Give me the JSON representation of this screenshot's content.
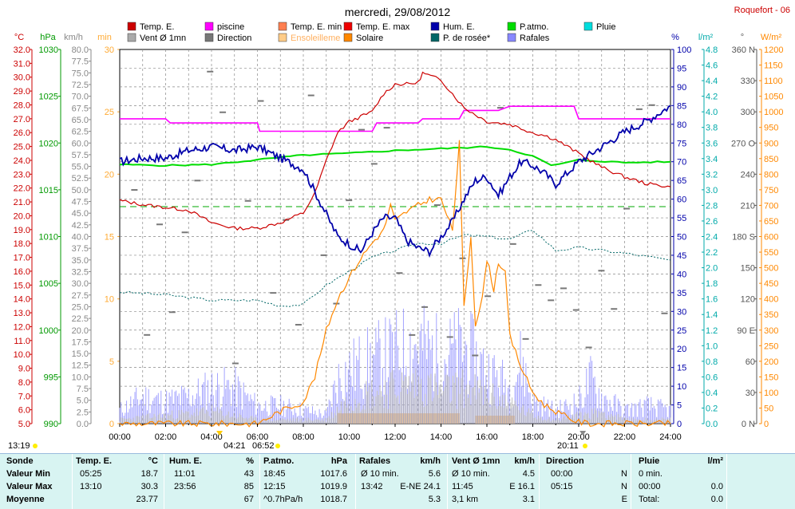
{
  "title": "mercredi, 29/08/2012",
  "station": "Roquefort - 06",
  "legend": [
    {
      "label": "Temp. E.",
      "color": "#cc0000"
    },
    {
      "label": "piscine",
      "color": "#ff00ff"
    },
    {
      "label": "Temp. E. min",
      "color": "#ff7f50"
    },
    {
      "label": "Temp. E. max",
      "color": "#ee0000"
    },
    {
      "label": "Hum. E.",
      "color": "#0000aa"
    },
    {
      "label": "P.atmo.",
      "color": "#00dd00"
    },
    {
      "label": "Pluie",
      "color": "#00dddd"
    },
    {
      "label": "Vent Ø 1mn",
      "color": "#aaaaaa"
    },
    {
      "label": "Direction",
      "color": "#777777"
    },
    {
      "label": "Ensoleilleme",
      "color": "#ffcc88"
    },
    {
      "label": "Solaire",
      "color": "#ff8800"
    },
    {
      "label": "P. de rosée*",
      "color": "#006666"
    },
    {
      "label": "Rafales",
      "color": "#8888ff"
    }
  ],
  "axes": {
    "left_units": [
      "°C",
      "hPa",
      "km/h",
      "min"
    ],
    "right_units": [
      "%",
      "l/m²",
      "°",
      "W/m²"
    ],
    "temp_ticks": [
      "5.0",
      "6.0",
      "7.0",
      "8.0",
      "9.0",
      "10.0",
      "11.0",
      "12.0",
      "13.0",
      "14.0",
      "15.0",
      "16.0",
      "17.0",
      "18.0",
      "19.0",
      "20.0",
      "21.0",
      "22.0",
      "23.0",
      "24.0",
      "25.0",
      "26.0",
      "27.0",
      "28.0",
      "29.0",
      "30.0",
      "31.0",
      "32.0"
    ],
    "hpa_ticks": [
      "990",
      "995",
      "1000",
      "1005",
      "1010",
      "1015",
      "1020",
      "1025",
      "1030"
    ],
    "kmh_ticks": [
      "0.0",
      "2.5",
      "5.0",
      "7.5",
      "10.0",
      "12.5",
      "15.0",
      "17.5",
      "20.0",
      "22.5",
      "25.0",
      "27.5",
      "30.0",
      "32.5",
      "35.0",
      "37.5",
      "40.0",
      "42.5",
      "45.0",
      "47.5",
      "50.0",
      "52.5",
      "55.0",
      "57.5",
      "60.0",
      "62.5",
      "65.0",
      "67.5",
      "70.0",
      "72.5",
      "75.0",
      "77.5",
      "80.0"
    ],
    "min_ticks": [
      "0",
      "5",
      "10",
      "15",
      "20",
      "25",
      "30"
    ],
    "pct_ticks": [
      "0",
      "5",
      "10",
      "15",
      "20",
      "25",
      "30",
      "35",
      "40",
      "45",
      "50",
      "55",
      "60",
      "65",
      "70",
      "75",
      "80",
      "85",
      "90",
      "95",
      "100"
    ],
    "rain_ticks": [
      "0.0",
      "0.2",
      "0.4",
      "0.6",
      "0.8",
      "1.0",
      "1.2",
      "1.4",
      "1.6",
      "1.8",
      "2.0",
      "2.2",
      "2.4",
      "2.6",
      "2.8",
      "3.0",
      "3.2",
      "3.4",
      "3.6",
      "3.8",
      "4.0",
      "4.2",
      "4.4",
      "4.6",
      "4.8"
    ],
    "dir_ticks": [
      "0 N",
      "30",
      "60",
      "90 E",
      "120",
      "150",
      "180 S",
      "210",
      "240",
      "270 O",
      "300",
      "330",
      "360 N"
    ],
    "wm2_ticks": [
      "0",
      "50",
      "100",
      "150",
      "200",
      "250",
      "300",
      "350",
      "400",
      "450",
      "500",
      "550",
      "600",
      "650",
      "700",
      "750",
      "800",
      "850",
      "900",
      "950",
      "1000",
      "1050",
      "1100",
      "1150",
      "1200"
    ],
    "time_ticks": [
      "00:00",
      "02:00",
      "04:00",
      "06:00",
      "08:00",
      "10:00",
      "12:00",
      "14:00",
      "16:00",
      "18:00",
      "20:00",
      "22:00",
      "24:00"
    ]
  },
  "sun_marks": {
    "left": "13:19",
    "sunrise1": "04:21",
    "sunrise2": "06:52",
    "sunset1": "20:11"
  },
  "chart_data": {
    "type": "line",
    "x_unit": "hour",
    "x_range": [
      0,
      24
    ],
    "series": [
      {
        "name": "Temp. E.",
        "unit": "°C",
        "points": [
          [
            0,
            21.1
          ],
          [
            1,
            20.8
          ],
          [
            2,
            20.6
          ],
          [
            3,
            20.4
          ],
          [
            4,
            19.5
          ],
          [
            5,
            19.1
          ],
          [
            6,
            19.1
          ],
          [
            7,
            19.5
          ],
          [
            8,
            20.2
          ],
          [
            8.5,
            21.6
          ],
          [
            9,
            24.0
          ],
          [
            9.5,
            26.0
          ],
          [
            10,
            26.8
          ],
          [
            11,
            27.5
          ],
          [
            11.5,
            28.8
          ],
          [
            12,
            29.5
          ],
          [
            12.5,
            29.5
          ],
          [
            13,
            29.6
          ],
          [
            13.2,
            30.3
          ],
          [
            14,
            29.8
          ],
          [
            14.5,
            28.8
          ],
          [
            15,
            27.8
          ],
          [
            16,
            26.8
          ],
          [
            17,
            26.6
          ],
          [
            18,
            26.0
          ],
          [
            18.5,
            25.8
          ],
          [
            19,
            25.5
          ],
          [
            20,
            24.5
          ],
          [
            20.5,
            24.0
          ],
          [
            21,
            23.5
          ],
          [
            22,
            22.8
          ],
          [
            23,
            22.3
          ],
          [
            24,
            22.1
          ]
        ]
      },
      {
        "name": "piscine",
        "unit": "°C",
        "points": [
          [
            0,
            27.0
          ],
          [
            2,
            27.0
          ],
          [
            2.2,
            26.7
          ],
          [
            6,
            26.7
          ],
          [
            6.1,
            26.1
          ],
          [
            11,
            26.1
          ],
          [
            11.2,
            26.7
          ],
          [
            13,
            26.7
          ],
          [
            13.2,
            27.0
          ],
          [
            14.8,
            27.0
          ],
          [
            15,
            27.6
          ],
          [
            16,
            27.6
          ],
          [
            16.5,
            27.6
          ],
          [
            17,
            27.9
          ],
          [
            19.8,
            27.9
          ],
          [
            20,
            27.0
          ],
          [
            24,
            27.0
          ]
        ]
      },
      {
        "name": "Hum. E.",
        "unit": "%",
        "points": [
          [
            0,
            70
          ],
          [
            1,
            71
          ],
          [
            2,
            71
          ],
          [
            3,
            73
          ],
          [
            4,
            74
          ],
          [
            5,
            73
          ],
          [
            6,
            74
          ],
          [
            7,
            71
          ],
          [
            8,
            68
          ],
          [
            8.5,
            62
          ],
          [
            9,
            56
          ],
          [
            9.5,
            50
          ],
          [
            10,
            48
          ],
          [
            10.5,
            46
          ],
          [
            11,
            51
          ],
          [
            11.5,
            55
          ],
          [
            12,
            55
          ],
          [
            12.5,
            49
          ],
          [
            13,
            47
          ],
          [
            13.5,
            46
          ],
          [
            14,
            50
          ],
          [
            14.5,
            54
          ],
          [
            15,
            60
          ],
          [
            15.5,
            65
          ],
          [
            16,
            66
          ],
          [
            16.5,
            61
          ],
          [
            17,
            66
          ],
          [
            17.5,
            70
          ],
          [
            18,
            69
          ],
          [
            18.5,
            67
          ],
          [
            19,
            64
          ],
          [
            19.5,
            67
          ],
          [
            20,
            70
          ],
          [
            21,
            74
          ],
          [
            22,
            78
          ],
          [
            23,
            81
          ],
          [
            23.5,
            83
          ],
          [
            24,
            85
          ]
        ]
      },
      {
        "name": "P.atmo.",
        "unit": "hPa",
        "points": [
          [
            0,
            1017.7
          ],
          [
            2,
            1017.6
          ],
          [
            4,
            1017.7
          ],
          [
            6,
            1018.2
          ],
          [
            8,
            1018.7
          ],
          [
            10,
            1018.9
          ],
          [
            12,
            1019.2
          ],
          [
            14,
            1019.4
          ],
          [
            16,
            1019.6
          ],
          [
            17,
            1019.3
          ],
          [
            18,
            1018.6
          ],
          [
            18.8,
            1017.6
          ],
          [
            19.5,
            1017.9
          ],
          [
            20,
            1018.2
          ],
          [
            22,
            1017.9
          ],
          [
            24,
            1018.0
          ]
        ]
      },
      {
        "name": "P. de rosée*",
        "unit": "°C",
        "points": [
          [
            0,
            14.5
          ],
          [
            2,
            14.3
          ],
          [
            4,
            13.9
          ],
          [
            6,
            13.9
          ],
          [
            7,
            13.5
          ],
          [
            8,
            13.6
          ],
          [
            9,
            15.0
          ],
          [
            10,
            16.0
          ],
          [
            11,
            17.0
          ],
          [
            12,
            17.5
          ],
          [
            13,
            18.0
          ],
          [
            14,
            18.0
          ],
          [
            15,
            18.6
          ],
          [
            16,
            18.5
          ],
          [
            17,
            18.3
          ],
          [
            18,
            19.0
          ],
          [
            19,
            17.5
          ],
          [
            20,
            17.7
          ],
          [
            22,
            17.3
          ],
          [
            24,
            16.8
          ]
        ]
      },
      {
        "name": "Solaire",
        "unit": "W/m²",
        "points": [
          [
            0,
            0
          ],
          [
            6,
            0
          ],
          [
            6.5,
            20
          ],
          [
            7,
            40
          ],
          [
            8,
            70
          ],
          [
            8.5,
            150
          ],
          [
            9,
            300
          ],
          [
            9.5,
            400
          ],
          [
            10,
            470
          ],
          [
            10.5,
            530
          ],
          [
            11,
            580
          ],
          [
            11.5,
            620
          ],
          [
            11.8,
            700
          ],
          [
            12,
            650
          ],
          [
            12.5,
            680
          ],
          [
            13,
            700
          ],
          [
            13.5,
            720
          ],
          [
            14,
            720
          ],
          [
            14.5,
            620
          ],
          [
            14.8,
            900
          ],
          [
            15,
            370
          ],
          [
            15.3,
            600
          ],
          [
            15.5,
            320
          ],
          [
            15.8,
            400
          ],
          [
            16,
            530
          ],
          [
            16.3,
            430
          ],
          [
            16.5,
            520
          ],
          [
            16.8,
            480
          ],
          [
            17,
            280
          ],
          [
            17.5,
            180
          ],
          [
            18,
            100
          ],
          [
            18.5,
            60
          ],
          [
            19,
            40
          ],
          [
            19.5,
            20
          ],
          [
            20,
            5
          ],
          [
            20.5,
            0
          ],
          [
            24,
            0
          ]
        ]
      },
      {
        "name": "Rafales",
        "unit": "km/h",
        "points": [
          [
            0,
            3
          ],
          [
            1,
            6
          ],
          [
            2,
            5
          ],
          [
            3,
            6
          ],
          [
            4,
            8
          ],
          [
            5,
            8
          ],
          [
            6,
            4
          ],
          [
            7,
            4
          ],
          [
            8,
            3
          ],
          [
            9,
            2
          ],
          [
            9.5,
            10
          ],
          [
            10,
            12
          ],
          [
            11,
            14
          ],
          [
            12,
            16
          ],
          [
            13,
            18
          ],
          [
            14,
            15
          ],
          [
            15,
            17
          ],
          [
            16,
            12
          ],
          [
            17,
            8
          ],
          [
            17.5,
            14
          ],
          [
            18,
            5
          ],
          [
            19,
            3
          ],
          [
            20,
            5
          ],
          [
            20.5,
            10
          ],
          [
            21,
            6
          ],
          [
            22,
            3
          ],
          [
            23,
            4
          ],
          [
            24,
            3
          ]
        ]
      },
      {
        "name": "Vent Ø 1mn",
        "unit": "km/h",
        "points": [
          [
            0,
            1
          ],
          [
            2,
            2
          ],
          [
            4,
            3
          ],
          [
            6,
            1
          ],
          [
            8,
            1
          ],
          [
            9,
            1
          ],
          [
            10,
            6
          ],
          [
            11,
            8
          ],
          [
            12,
            9
          ],
          [
            13,
            10
          ],
          [
            14,
            8
          ],
          [
            15,
            9
          ],
          [
            16,
            7
          ],
          [
            17,
            5
          ],
          [
            18,
            2
          ],
          [
            19,
            1
          ],
          [
            20,
            2
          ],
          [
            21,
            3
          ],
          [
            22,
            1
          ],
          [
            24,
            1
          ]
        ]
      }
    ]
  },
  "summary": {
    "headers": [
      "Sonde",
      "Temp. E.",
      "°C",
      "Hum. E.",
      "%",
      "P.atmo.",
      "hPa",
      "Rafales",
      "km/h",
      "Vent Ø 1mn",
      "km/h",
      "Direction",
      "",
      "Pluie",
      "l/m²"
    ],
    "rows": [
      {
        "label": "Valeur Min",
        "temp_time": "05:25",
        "temp_val": "18.7",
        "hum_time": "11:01",
        "hum_val": "43",
        "pres_time": "18:45",
        "pres_val": "1017.6",
        "raf_label": "Ø 10 min.",
        "raf_val": "5.6",
        "vent_label": "Ø 10 min.",
        "vent_val": "4.5",
        "dir_time": "00:00",
        "dir_val": "N",
        "pluie_label": "0 min.",
        "pluie_val": ""
      },
      {
        "label": "Valeur Max",
        "temp_time": "13:10",
        "temp_val": "30.3",
        "hum_time": "23:56",
        "hum_val": "85",
        "pres_time": "12:15",
        "pres_val": "1019.9",
        "raf_label": "13:42",
        "raf_val": "E-NE 24.1",
        "vent_label": "11:45",
        "vent_val": "E 16.1",
        "dir_time": "05:15",
        "dir_val": "N",
        "pluie_label": "00:00",
        "pluie_val": "0.0"
      },
      {
        "label": "Moyenne",
        "temp_time": "",
        "temp_val": "23.77",
        "hum_time": "",
        "hum_val": "67",
        "pres_time": "^0.7hPa/h",
        "pres_val": "1018.7",
        "raf_label": "",
        "raf_val": "5.3",
        "vent_label": "3,1 km",
        "vent_val": "3.1",
        "dir_time": "",
        "dir_val": "E",
        "pluie_label": "Total:",
        "pluie_val": "0.0"
      }
    ]
  }
}
